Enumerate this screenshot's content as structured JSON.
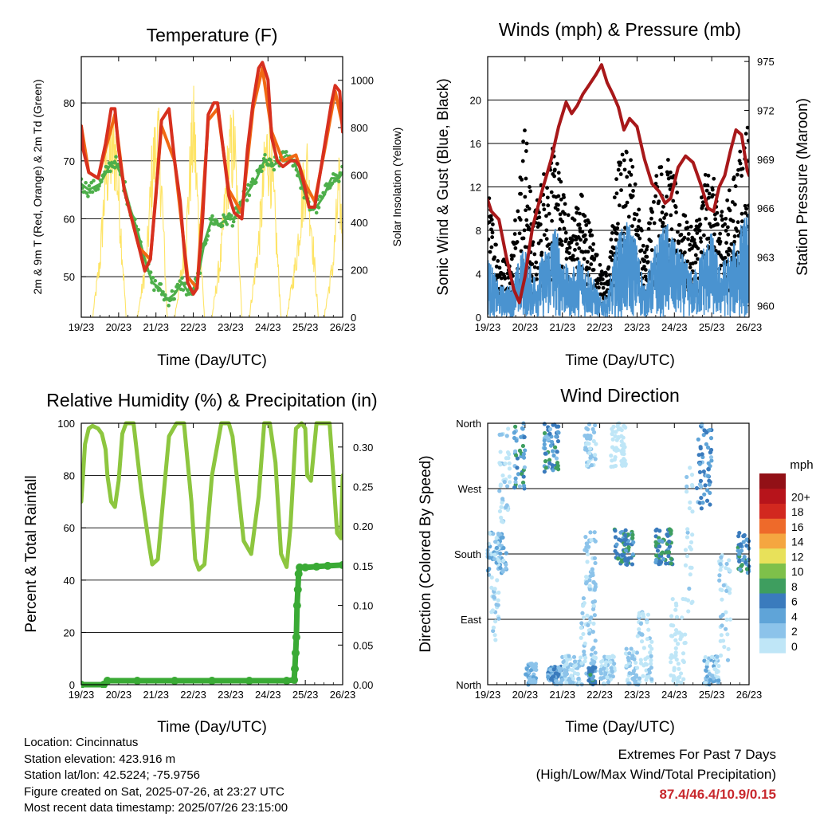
{
  "chart_data": [
    {
      "type": "line",
      "title": "Temperature (F)",
      "xlabel": "Time (Day/UTC)",
      "ylabel": "2m & 9m T (Red, Orange) & 2m Td (Green)",
      "y2label": "Solar Insolation (Yellow)",
      "x_ticks": [
        "19/23",
        "20/23",
        "21/23",
        "22/23",
        "23/23",
        "24/23",
        "25/23",
        "26/23"
      ],
      "ylim": [
        43,
        88
      ],
      "y_ticks": [
        50,
        60,
        70,
        80
      ],
      "y2lim": [
        0,
        1100
      ],
      "y2_ticks": [
        0,
        200,
        400,
        600,
        800,
        1000
      ],
      "grid": "horizontal",
      "series": [
        {
          "axis": "left",
          "color": "#d7301f",
          "x": [
            0,
            0.05,
            0.2,
            0.45,
            0.65,
            0.8,
            0.9,
            1.0,
            1.15,
            1.35,
            1.55,
            1.7,
            1.85,
            2.0,
            2.15,
            2.35,
            2.5,
            2.65,
            2.75,
            2.85,
            3.0,
            3.1,
            3.25,
            3.4,
            3.55,
            3.65,
            3.8,
            3.95,
            4.1,
            4.3,
            4.45,
            4.6,
            4.75,
            4.85,
            5.0,
            5.1,
            5.25,
            5.4,
            5.6,
            5.75,
            5.85,
            6.0,
            6.1,
            6.25,
            6.4,
            6.55,
            6.7,
            6.8,
            6.92,
            7.0
          ],
          "y": [
            76,
            72,
            68,
            67,
            73,
            79,
            79,
            72,
            65,
            60,
            55,
            51,
            53,
            64,
            77,
            79,
            70,
            63,
            55,
            49,
            47,
            48,
            60,
            78,
            80,
            80,
            72,
            64,
            61,
            60,
            72,
            80,
            86,
            87,
            84,
            74,
            70,
            69,
            70,
            70,
            69,
            65,
            62,
            62,
            68,
            74,
            80,
            83,
            82,
            75
          ]
        },
        {
          "axis": "left",
          "color": "#f16913",
          "x": [
            0,
            0.2,
            0.45,
            0.65,
            0.9,
            1.15,
            1.55,
            1.85,
            2.15,
            2.5,
            2.85,
            3.1,
            3.4,
            3.65,
            3.95,
            4.3,
            4.6,
            4.85,
            5.1,
            5.4,
            5.75,
            6.0,
            6.25,
            6.55,
            6.8,
            7.0
          ],
          "y": [
            76,
            68,
            67,
            72,
            78,
            65,
            55,
            53,
            76,
            70,
            50,
            48,
            77,
            79,
            65,
            61,
            79,
            86,
            75,
            70,
            71,
            66,
            63,
            73,
            82,
            76
          ]
        },
        {
          "axis": "left",
          "color": "#4daf4a",
          "x": [
            0,
            0.2,
            0.5,
            0.75,
            0.9,
            1.1,
            1.3,
            1.5,
            1.7,
            1.9,
            2.1,
            2.3,
            2.5,
            2.7,
            2.9,
            3.1,
            3.3,
            3.5,
            3.7,
            3.9,
            4.1,
            4.3,
            4.5,
            4.7,
            4.9,
            5.1,
            5.3,
            5.5,
            5.7,
            5.9,
            6.1,
            6.3,
            6.5,
            6.7,
            6.9,
            7.0
          ],
          "y": [
            66,
            65,
            66,
            69,
            70,
            67,
            62,
            58,
            53,
            49,
            48,
            46,
            47,
            49,
            47,
            49,
            56,
            60,
            59,
            60,
            60,
            63,
            65,
            67,
            70,
            69,
            70,
            71,
            70,
            66,
            62,
            62,
            64,
            67,
            67,
            68
          ]
        },
        {
          "axis": "right",
          "color": "#fee466",
          "x": [
            0,
            0.3,
            0.5,
            0.65,
            0.8,
            0.92,
            1.05,
            1.2,
            1.5,
            1.75,
            1.9,
            2.05,
            2.15,
            2.3,
            2.5,
            2.8,
            2.95,
            3.02,
            3.12,
            3.3,
            3.5,
            3.75,
            3.95,
            4.1,
            4.2,
            4.3,
            4.5,
            4.75,
            4.95,
            5.05,
            5.2,
            5.35,
            5.5,
            5.75,
            5.95,
            6.05,
            6.2,
            6.35,
            6.5,
            6.75,
            6.9,
            7.0
          ],
          "y": [
            0,
            0,
            300,
            750,
            870,
            900,
            500,
            0,
            0,
            300,
            800,
            950,
            700,
            0,
            0,
            400,
            900,
            1000,
            600,
            0,
            0,
            350,
            850,
            930,
            500,
            0,
            0,
            400,
            880,
            900,
            500,
            0,
            0,
            300,
            700,
            800,
            400,
            0,
            0,
            300,
            700,
            450
          ]
        }
      ]
    },
    {
      "type": "scatter",
      "title": "Winds (mph) & Pressure (mb)",
      "xlabel": "Time (Day/UTC)",
      "ylabel": "Sonic Wind & Gust (Blue, Black)",
      "y2label": "Station Pressure (Maroon)",
      "x_ticks": [
        "19/23",
        "20/23",
        "21/23",
        "22/23",
        "23/23",
        "24/23",
        "25/23",
        "26/23"
      ],
      "ylim": [
        0,
        24
      ],
      "y_ticks": [
        0,
        4,
        8,
        12,
        16,
        20
      ],
      "y2lim": [
        959.3,
        975.3
      ],
      "y2_ticks": [
        960,
        963,
        966,
        969,
        972,
        975
      ],
      "grid": "horizontal",
      "gust_color": "#000000",
      "wind_color": "#4a93d0",
      "pressure_color": "#a8181a",
      "gust_envelope_x": [
        0,
        0.3,
        0.6,
        0.8,
        1.0,
        1.2,
        1.5,
        1.8,
        2.0,
        2.2,
        2.5,
        2.8,
        3.0,
        3.2,
        3.5,
        3.8,
        4.0,
        4.2,
        4.5,
        4.8,
        5.0,
        5.2,
        5.5,
        5.8,
        6.0,
        6.2,
        6.5,
        6.8,
        7.0
      ],
      "gust_envelope": [
        12,
        6,
        5,
        12,
        19,
        9,
        14,
        16,
        12,
        9,
        12,
        8,
        5,
        4,
        15,
        16,
        12,
        6,
        14,
        15,
        13,
        10,
        8,
        13,
        14,
        10,
        12,
        16,
        20
      ],
      "wind_envelope_x": [
        0,
        0.3,
        0.6,
        0.8,
        1.0,
        1.2,
        1.5,
        1.8,
        2.0,
        2.2,
        2.5,
        2.8,
        3.0,
        3.2,
        3.5,
        3.8,
        4.0,
        4.2,
        4.5,
        4.8,
        5.0,
        5.2,
        5.5,
        5.8,
        6.0,
        6.2,
        6.5,
        6.8,
        7.0
      ],
      "wind_envelope": [
        6,
        3,
        3,
        5,
        7,
        4,
        6,
        9,
        6,
        4,
        6,
        4,
        2,
        2,
        8,
        9,
        7,
        3,
        7,
        9,
        7,
        6,
        4,
        7,
        8,
        5,
        6,
        9,
        10
      ],
      "pressure_x": [
        0,
        0.1,
        0.3,
        0.5,
        0.7,
        0.85,
        1.0,
        1.2,
        1.45,
        1.7,
        1.9,
        2.1,
        2.25,
        2.4,
        2.55,
        2.7,
        2.9,
        3.05,
        3.2,
        3.35,
        3.5,
        3.65,
        3.8,
        4.0,
        4.2,
        4.4,
        4.6,
        4.75,
        4.9,
        5.1,
        5.3,
        5.5,
        5.7,
        5.9,
        6.05,
        6.2,
        6.35,
        6.5,
        6.65,
        6.8,
        6.95,
        7.0
      ],
      "pressure": [
        966.5,
        965.8,
        965.3,
        963.0,
        961.0,
        960.2,
        961.8,
        964.8,
        967.0,
        969.0,
        971.0,
        972.5,
        971.8,
        972.3,
        973.0,
        973.5,
        974.2,
        974.8,
        973.7,
        973.0,
        972.2,
        970.8,
        971.5,
        971.0,
        969.0,
        967.5,
        967.0,
        966.3,
        966.6,
        968.5,
        969.2,
        968.8,
        967.5,
        966.0,
        965.8,
        967.3,
        968.0,
        969.5,
        970.8,
        970.5,
        968.3,
        968.0
      ]
    },
    {
      "type": "line",
      "title": "Relative Humidity (%) & Precipitation (in)",
      "xlabel": "Time (Day/UTC)",
      "ylabel": "Percent & Total Rainfall",
      "x_ticks": [
        "19/23",
        "20/23",
        "21/23",
        "22/23",
        "23/23",
        "24/23",
        "25/23",
        "26/23"
      ],
      "ylim": [
        0,
        100
      ],
      "y_ticks": [
        0,
        20,
        40,
        60,
        80,
        100
      ],
      "y2lim": [
        0,
        0.33
      ],
      "y2_ticks": [
        "0.00",
        "0.05",
        "0.10",
        "0.15",
        "0.20",
        "0.25",
        "0.30"
      ],
      "grid": "horizontal",
      "series": [
        {
          "name": "rh",
          "color": "#8dc63f",
          "x": [
            0,
            0.1,
            0.2,
            0.3,
            0.45,
            0.55,
            0.65,
            0.7,
            0.8,
            0.9,
            1.0,
            1.1,
            1.2,
            1.4,
            1.6,
            1.8,
            1.9,
            2.05,
            2.2,
            2.35,
            2.55,
            2.75,
            2.95,
            3.05,
            3.15,
            3.3,
            3.5,
            3.75,
            3.95,
            4.05,
            4.2,
            4.35,
            4.55,
            4.75,
            4.9,
            5.05,
            5.2,
            5.35,
            5.5,
            5.6,
            5.75,
            5.9,
            6.0,
            6.05,
            6.15,
            6.3,
            6.5,
            6.65,
            6.75,
            6.85,
            6.95,
            7.0
          ],
          "y": [
            70,
            92,
            98,
            99,
            98,
            96,
            90,
            80,
            70,
            68,
            78,
            96,
            100,
            100,
            75,
            55,
            46,
            48,
            72,
            95,
            100,
            100,
            70,
            48,
            44,
            46,
            80,
            100,
            100,
            95,
            75,
            55,
            50,
            72,
            100,
            100,
            85,
            50,
            45,
            60,
            98,
            100,
            98,
            80,
            78,
            100,
            100,
            100,
            80,
            58,
            56,
            80
          ]
        },
        {
          "name": "rain",
          "color": "#3aaa35",
          "x": [
            0,
            0.6,
            0.7,
            1.5,
            2.5,
            3.5,
            4.5,
            5.5,
            5.7,
            5.72,
            5.74,
            5.76,
            5.78,
            5.8,
            5.82,
            5.85,
            6.0,
            6.3,
            6.6,
            7.0
          ],
          "y": [
            0.0,
            0.0,
            0.005,
            0.005,
            0.005,
            0.005,
            0.005,
            0.005,
            0.006,
            0.02,
            0.04,
            0.06,
            0.1,
            0.12,
            0.14,
            0.148,
            0.148,
            0.149,
            0.15,
            0.151
          ]
        }
      ]
    },
    {
      "type": "scatter",
      "title": "Wind Direction",
      "xlabel": "Time (Day/UTC)",
      "ylabel": "Direction (Colored By Speed)",
      "x_ticks": [
        "19/23",
        "20/23",
        "21/23",
        "22/23",
        "23/23",
        "24/23",
        "25/23",
        "26/23"
      ],
      "y_ticks": [
        "North",
        "East",
        "South",
        "West",
        "North"
      ],
      "ylim": [
        0,
        360
      ],
      "grid": "horizontal",
      "legend": {
        "title": "mph",
        "labels": [
          "0",
          "2",
          "4",
          "6",
          "8",
          "10",
          "12",
          "14",
          "16",
          "18",
          "20+"
        ],
        "colors": [
          "#bfe6f7",
          "#8cc3ea",
          "#5fa4d8",
          "#3a7bbd",
          "#3e9e5f",
          "#7ec04a",
          "#e8e15a",
          "#f5a640",
          "#ee6a2a",
          "#d2281f",
          "#b7141b",
          "#921016"
        ],
        "placement": "right"
      },
      "clusters": [
        {
          "x0": 0.0,
          "x1": 0.5,
          "d0": 150,
          "d1": 210,
          "sp": [
            1,
            6
          ]
        },
        {
          "x0": 0.1,
          "x1": 0.3,
          "d0": 60,
          "d1": 150,
          "sp": [
            0,
            3
          ]
        },
        {
          "x0": 0.7,
          "x1": 1.0,
          "d0": 270,
          "d1": 360,
          "sp": [
            3,
            9
          ]
        },
        {
          "x0": 0.3,
          "x1": 0.6,
          "d0": 220,
          "d1": 360,
          "sp": [
            0,
            3
          ]
        },
        {
          "x0": 1.0,
          "x1": 1.3,
          "d0": 0,
          "d1": 30,
          "sp": [
            2,
            5
          ]
        },
        {
          "x0": 1.5,
          "x1": 1.9,
          "d0": 290,
          "d1": 360,
          "sp": [
            3,
            9
          ]
        },
        {
          "x0": 1.6,
          "x1": 2.0,
          "d0": 0,
          "d1": 25,
          "sp": [
            2,
            8
          ]
        },
        {
          "x0": 2.0,
          "x1": 2.5,
          "d0": 0,
          "d1": 40,
          "sp": [
            1,
            4
          ]
        },
        {
          "x0": 2.5,
          "x1": 2.9,
          "d0": 0,
          "d1": 120,
          "sp": [
            1,
            4
          ]
        },
        {
          "x0": 2.6,
          "x1": 2.9,
          "d0": 130,
          "d1": 210,
          "sp": [
            1,
            4
          ]
        },
        {
          "x0": 2.6,
          "x1": 2.9,
          "d0": 300,
          "d1": 360,
          "sp": [
            1,
            4
          ]
        },
        {
          "x0": 2.7,
          "x1": 2.9,
          "d0": 0,
          "d1": 25,
          "sp": [
            5,
            9
          ]
        },
        {
          "x0": 3.0,
          "x1": 3.4,
          "d0": 0,
          "d1": 40,
          "sp": [
            0,
            4
          ]
        },
        {
          "x0": 3.3,
          "x1": 3.7,
          "d0": 300,
          "d1": 360,
          "sp": [
            0,
            2
          ]
        },
        {
          "x0": 3.4,
          "x1": 3.9,
          "d0": 165,
          "d1": 215,
          "sp": [
            5,
            10
          ]
        },
        {
          "x0": 3.7,
          "x1": 4.0,
          "d0": 0,
          "d1": 50,
          "sp": [
            1,
            4
          ]
        },
        {
          "x0": 4.5,
          "x1": 4.95,
          "d0": 165,
          "d1": 215,
          "sp": [
            5,
            10
          ]
        },
        {
          "x0": 4.0,
          "x1": 4.4,
          "d0": 0,
          "d1": 100,
          "sp": [
            0,
            3
          ]
        },
        {
          "x0": 4.9,
          "x1": 5.3,
          "d0": 0,
          "d1": 120,
          "sp": [
            0,
            2
          ]
        },
        {
          "x0": 5.3,
          "x1": 5.5,
          "d0": 100,
          "d1": 300,
          "sp": [
            0,
            3
          ]
        },
        {
          "x0": 5.6,
          "x1": 6.0,
          "d0": 240,
          "d1": 360,
          "sp": [
            3,
            8
          ]
        },
        {
          "x0": 5.8,
          "x1": 6.2,
          "d0": 0,
          "d1": 40,
          "sp": [
            1,
            5
          ]
        },
        {
          "x0": 6.2,
          "x1": 6.5,
          "d0": 30,
          "d1": 180,
          "sp": [
            0,
            3
          ]
        },
        {
          "x0": 6.7,
          "x1": 7.0,
          "d0": 150,
          "d1": 210,
          "sp": [
            4,
            10
          ]
        }
      ]
    }
  ],
  "info": {
    "location": "Location: Cincinnatus",
    "elevation": "Station elevation: 423.916 m",
    "latlon": "Station lat/lon: 42.5224; -75.9756",
    "created": "Figure created on Sat, 2025-07-26, at 23:27 UTC",
    "recent": "Most recent data timestamp: 2025/07/26 23:15:00"
  },
  "extremes": {
    "title": "Extremes For Past 7 Days",
    "subtitle": "(High/Low/Max Wind/Total Precipitation)",
    "value": "87.4/46.4/10.9/0.15"
  }
}
